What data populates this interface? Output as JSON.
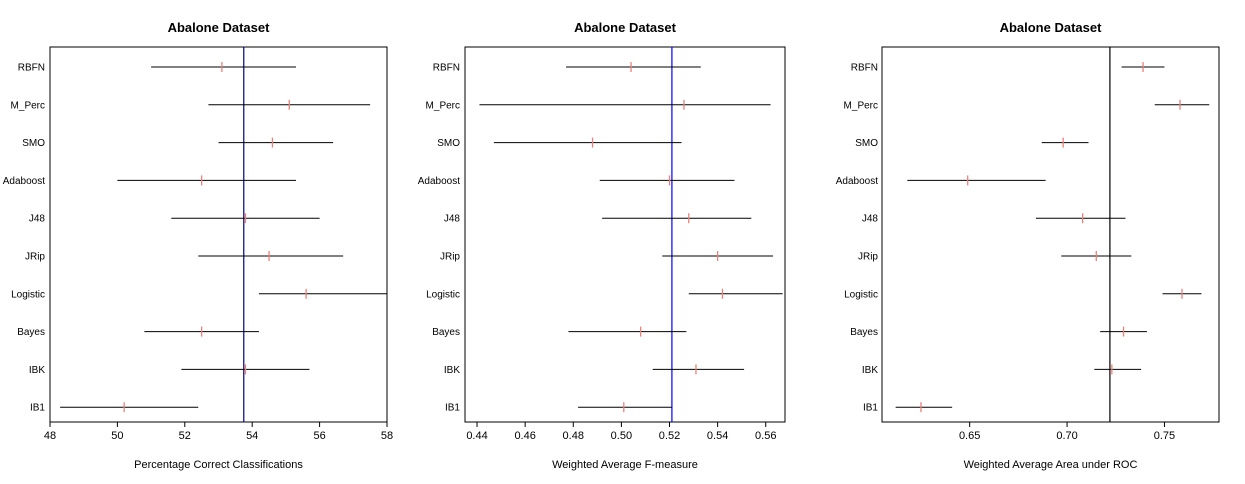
{
  "chart_data": [
    {
      "type": "errorbar",
      "title": "Abalone Dataset",
      "xlabel": "Percentage Correct Classifications",
      "ylabel": "",
      "xlim": [
        48,
        58
      ],
      "xticks": [
        48,
        50,
        52,
        54,
        56,
        58
      ],
      "tick_labels": [
        "48",
        "50",
        "52",
        "54",
        "56",
        "58"
      ],
      "categories": [
        "RBFN",
        "M_Perc",
        "SMO",
        "Adaboost",
        "J48",
        "JRip",
        "Logistic",
        "Bayes",
        "IBK",
        "IB1"
      ],
      "means": [
        53.1,
        55.1,
        54.6,
        52.5,
        53.8,
        54.5,
        55.6,
        52.5,
        53.8,
        50.2
      ],
      "lower": [
        51.0,
        52.7,
        53.0,
        50.0,
        51.6,
        52.4,
        54.2,
        50.8,
        51.9,
        48.3
      ],
      "upper": [
        55.3,
        57.5,
        56.4,
        55.3,
        56.0,
        56.7,
        58.0,
        54.2,
        55.7,
        52.4
      ],
      "reference_line": 53.75,
      "reference_color": "#000080",
      "mean_color": "#e8827c"
    },
    {
      "type": "errorbar",
      "title": "Abalone Dataset",
      "xlabel": "Weighted Average F-measure",
      "ylabel": "",
      "xlim": [
        0.435,
        0.568
      ],
      "xticks": [
        0.44,
        0.46,
        0.48,
        0.5,
        0.52,
        0.54,
        0.56
      ],
      "tick_labels": [
        "0.44",
        "0.46",
        "0.48",
        "0.50",
        "0.52",
        "0.54",
        "0.56"
      ],
      "categories": [
        "RBFN",
        "M_Perc",
        "SMO",
        "Adaboost",
        "J48",
        "JRip",
        "Logistic",
        "Bayes",
        "IBK",
        "IB1"
      ],
      "means": [
        0.504,
        0.526,
        0.488,
        0.52,
        0.528,
        0.54,
        0.542,
        0.508,
        0.531,
        0.501
      ],
      "lower": [
        0.477,
        0.441,
        0.447,
        0.491,
        0.492,
        0.517,
        0.528,
        0.478,
        0.513,
        0.482
      ],
      "upper": [
        0.533,
        0.562,
        0.525,
        0.547,
        0.554,
        0.563,
        0.567,
        0.527,
        0.551,
        0.521
      ],
      "reference_line": 0.521,
      "reference_color": "#0000ff",
      "mean_color": "#e8827c"
    },
    {
      "type": "errorbar",
      "title": "Abalone Dataset",
      "xlabel": "Weighted Average Area under ROC",
      "ylabel": "",
      "xlim": [
        0.605,
        0.778
      ],
      "xticks": [
        0.65,
        0.7,
        0.75
      ],
      "tick_labels": [
        "0.65",
        "0.70",
        "0.75"
      ],
      "categories": [
        "RBFN",
        "M_Perc",
        "SMO",
        "Adaboost",
        "J48",
        "JRip",
        "Logistic",
        "Bayes",
        "IBK",
        "IB1"
      ],
      "means": [
        0.739,
        0.758,
        0.698,
        0.649,
        0.708,
        0.715,
        0.759,
        0.729,
        0.723,
        0.625
      ],
      "lower": [
        0.728,
        0.745,
        0.687,
        0.618,
        0.684,
        0.697,
        0.749,
        0.717,
        0.714,
        0.612
      ],
      "upper": [
        0.75,
        0.773,
        0.711,
        0.689,
        0.73,
        0.733,
        0.769,
        0.741,
        0.738,
        0.641
      ],
      "reference_line": 0.722,
      "reference_color": "#000000",
      "mean_color": "#e8827c"
    }
  ]
}
